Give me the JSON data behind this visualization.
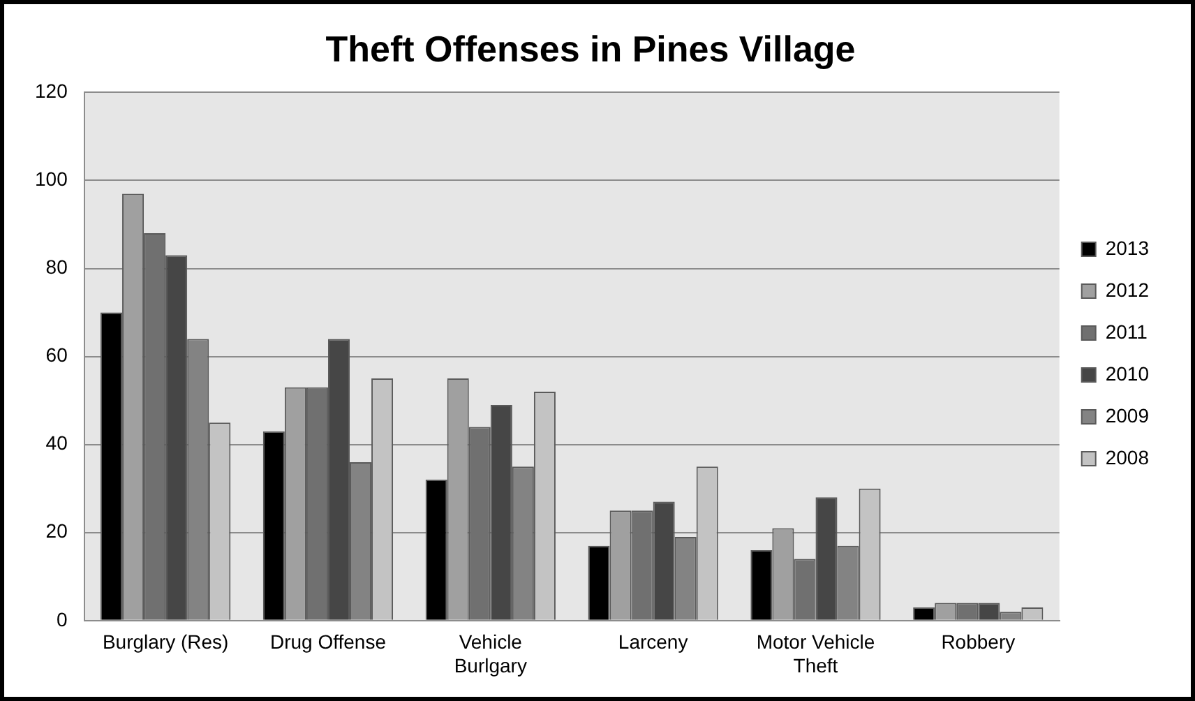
{
  "chart_data": {
    "type": "bar",
    "title": "Theft Offenses in Pines Village",
    "categories": [
      "Burglary (Res)",
      "Drug Offense",
      "Vehicle Burlgary",
      "Larceny",
      "Motor Vehicle Theft",
      "Robbery"
    ],
    "series": [
      {
        "name": "2013",
        "color": "#000000",
        "values": [
          70,
          43,
          32,
          17,
          16,
          3
        ]
      },
      {
        "name": "2012",
        "color": "#a0a0a0",
        "values": [
          97,
          53,
          55,
          25,
          21,
          4
        ]
      },
      {
        "name": "2011",
        "color": "#707070",
        "values": [
          88,
          53,
          44,
          25,
          14,
          4
        ]
      },
      {
        "name": "2010",
        "color": "#464646",
        "values": [
          83,
          64,
          49,
          27,
          28,
          4
        ]
      },
      {
        "name": "2009",
        "color": "#838383",
        "values": [
          64,
          36,
          35,
          19,
          17,
          2
        ]
      },
      {
        "name": "2008",
        "color": "#c3c3c3",
        "values": [
          45,
          55,
          52,
          35,
          30,
          3
        ]
      }
    ],
    "ylim": [
      0,
      120
    ],
    "yticks": [
      0,
      20,
      40,
      60,
      80,
      100,
      120
    ],
    "grid": "y",
    "legend": "right"
  }
}
